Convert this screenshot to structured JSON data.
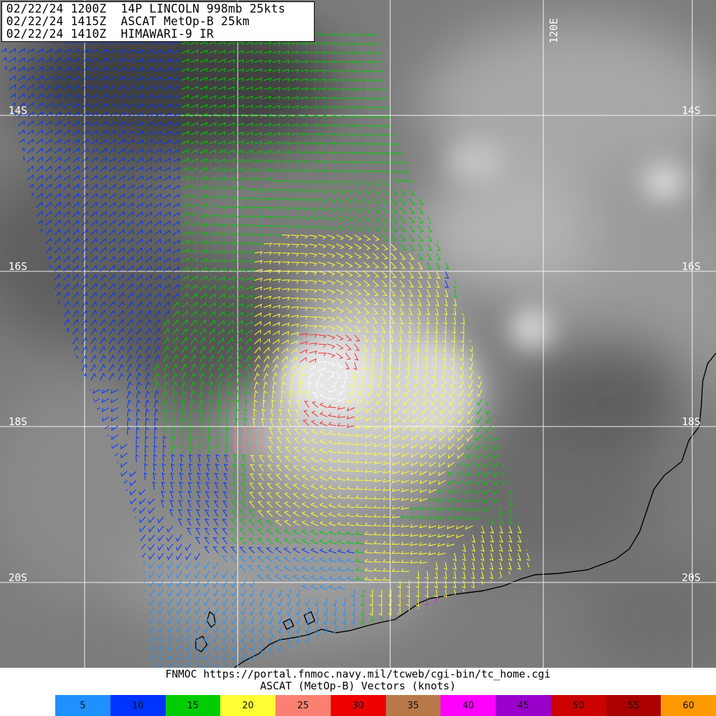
{
  "header": {
    "line1": "02/22/24 1200Z  14P LINCOLN 998mb 25kts",
    "line2": "02/22/24 1415Z  ASCAT MetOp-B 25km",
    "line3": "02/22/24 1410Z  HIMAWARI-9 IR"
  },
  "map": {
    "lat_labels_left": [
      "14S",
      "16S",
      "18S",
      "20S"
    ],
    "lat_labels_right": [
      "14S",
      "16S",
      "18S",
      "20S"
    ],
    "lon_label": "120E"
  },
  "footer": {
    "url": "FNMOC https://portal.fnmoc.navy.mil/tcweb/cgi-bin/tc_home.cgi",
    "title": "ASCAT (MetOp-B) Vectors (knots)"
  },
  "legend": [
    {
      "label": "5",
      "color": "#1e90ff"
    },
    {
      "label": "10",
      "color": "#0033ff"
    },
    {
      "label": "15",
      "color": "#00cc00"
    },
    {
      "label": "20",
      "color": "#ffff33"
    },
    {
      "label": "25",
      "color": "#fa8072"
    },
    {
      "label": "30",
      "color": "#ee0000"
    },
    {
      "label": "35",
      "color": "#b8784a"
    },
    {
      "label": "40",
      "color": "#ff00ff"
    },
    {
      "label": "45",
      "color": "#9900cc"
    },
    {
      "label": "50",
      "color": "#cc0000"
    },
    {
      "label": "55",
      "color": "#aa0000"
    },
    {
      "label": "60",
      "color": "#ff9900"
    }
  ]
}
